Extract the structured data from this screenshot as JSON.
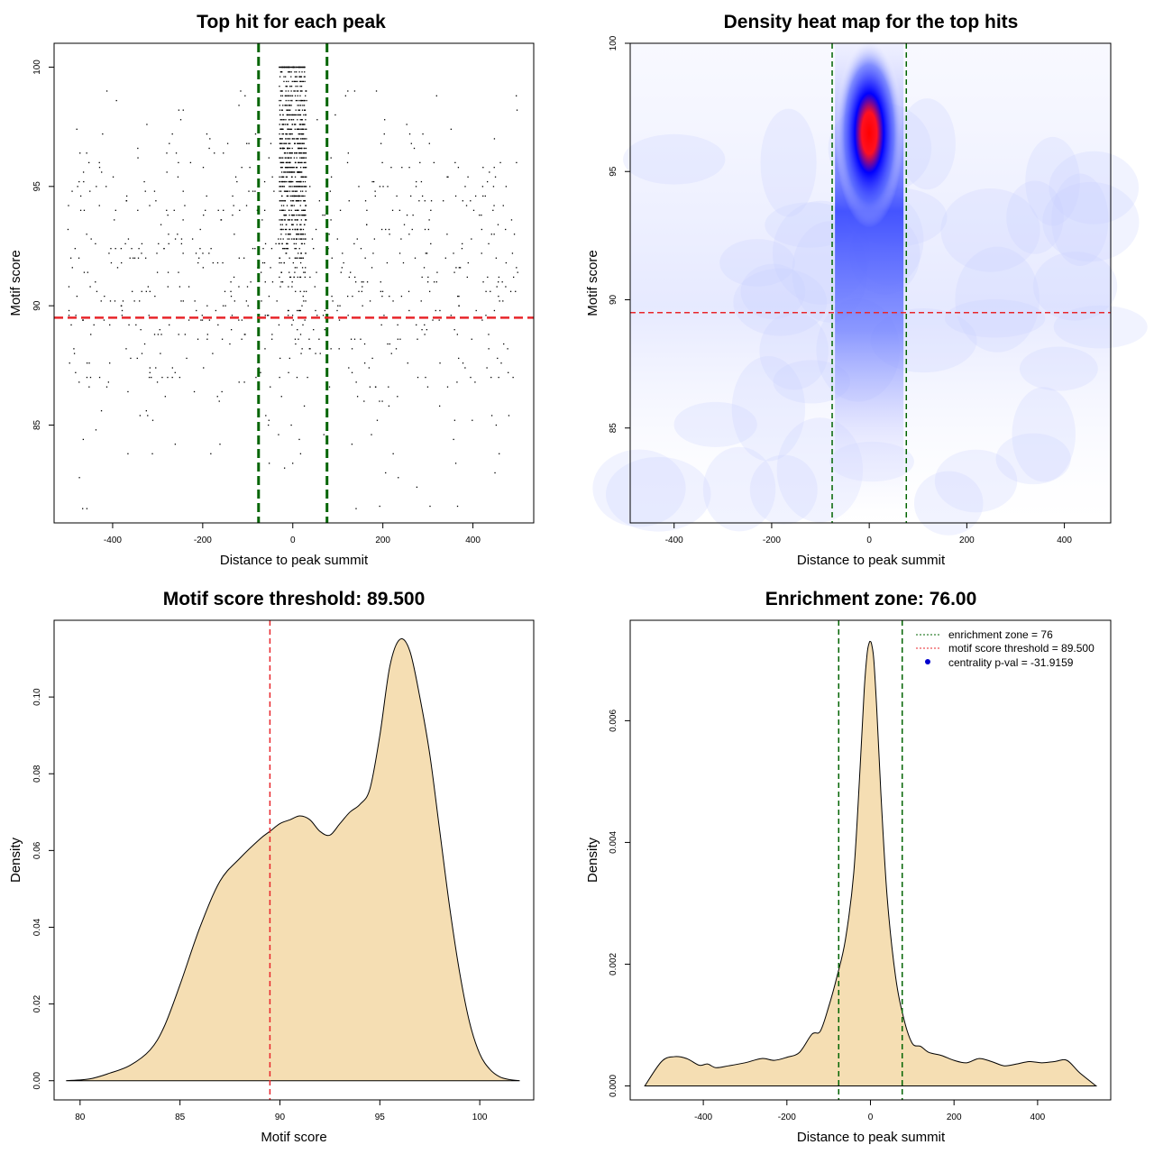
{
  "chart_data": [
    {
      "type": "scatter",
      "title": "Top hit for each peak",
      "xlabel": "Distance to peak summit",
      "ylabel": "Motif score",
      "xlim": [
        -530,
        535
      ],
      "ylim": [
        80.9,
        101
      ],
      "xticks": [
        -400,
        -200,
        0,
        200,
        400
      ],
      "yticks": [
        85,
        90,
        95,
        100
      ],
      "xtick_labels": [
        "-400",
        "-200",
        "0",
        "200",
        "400"
      ],
      "ytick_labels": [
        "85",
        "90",
        "95",
        "100"
      ],
      "points_description_counts": {
        "central_band": 900,
        "background": 700
      },
      "central_band_x_range": [
        -30,
        30
      ],
      "background_x_range": [
        -500,
        500
      ],
      "y_range": [
        81.5,
        100
      ],
      "vlines": [
        -76,
        76
      ],
      "hline": 89.5,
      "colors": {
        "points": "#000000",
        "vlines": "#006400",
        "hline": "#e8262b"
      },
      "grid": false
    },
    {
      "type": "heatmap",
      "title": "Density heat map for the top hits",
      "xlabel": "Distance to peak summit",
      "ylabel": "Motif score",
      "xlim": [
        -490,
        495
      ],
      "ylim": [
        81.3,
        100
      ],
      "xticks": [
        -400,
        -200,
        0,
        200,
        400
      ],
      "yticks": [
        85,
        90,
        95,
        100
      ],
      "xtick_labels": [
        "-400",
        "-200",
        "0",
        "200",
        "400"
      ],
      "ytick_labels": [
        "85",
        "90",
        "95",
        "100"
      ],
      "hotspot_center": [
        0,
        96.5
      ],
      "vlines": [
        -76,
        76
      ],
      "hline": 89.5,
      "colors": {
        "low": "#ffffff",
        "mid": "#0000ff",
        "high": "#ff0000",
        "vlines": "#006400",
        "hline": "#e8262b"
      }
    },
    {
      "type": "area",
      "title": "Motif score threshold: 89.500",
      "xlabel": "Motif score",
      "ylabel": "Density",
      "xlim": [
        78.7,
        102.7
      ],
      "ylim": [
        -0.005,
        0.12
      ],
      "xticks": [
        80,
        85,
        90,
        95,
        100
      ],
      "yticks": [
        0,
        0.02,
        0.04,
        0.06,
        0.08,
        0.1
      ],
      "xtick_labels": [
        "80",
        "85",
        "90",
        "95",
        "100"
      ],
      "ytick_labels": [
        "0.00",
        "0.02",
        "0.04",
        "0.06",
        "0.08",
        "0.10"
      ],
      "x": [
        79.3,
        80.5,
        81.5,
        82.5,
        83.5,
        84.2,
        85,
        86,
        87,
        88,
        89,
        89.5,
        90,
        90.5,
        91,
        91.5,
        92,
        92.5,
        93,
        93.5,
        94,
        94.5,
        95,
        95.5,
        96,
        96.5,
        97,
        97.5,
        98,
        98.5,
        99,
        99.5,
        100,
        100.5,
        101,
        101.5,
        102
      ],
      "y": [
        0,
        0.0005,
        0.002,
        0.004,
        0.008,
        0.014,
        0.025,
        0.04,
        0.052,
        0.058,
        0.063,
        0.065,
        0.067,
        0.068,
        0.069,
        0.068,
        0.065,
        0.064,
        0.067,
        0.07,
        0.072,
        0.076,
        0.09,
        0.108,
        0.115,
        0.112,
        0.1,
        0.085,
        0.065,
        0.045,
        0.028,
        0.015,
        0.007,
        0.003,
        0.001,
        0.0003,
        0
      ],
      "vline": 89.5,
      "colors": {
        "fill": "#f5deb3",
        "line": "#000000",
        "vline": "#e8262b"
      }
    },
    {
      "type": "area",
      "title": "Enrichment zone: 76.00",
      "xlabel": "Distance to peak summit",
      "ylabel": "Density",
      "xlim": [
        -575,
        575
      ],
      "ylim": [
        -0.00023,
        0.00765
      ],
      "xticks": [
        -400,
        -200,
        0,
        200,
        400
      ],
      "yticks": [
        0,
        0.002,
        0.004,
        0.006
      ],
      "xtick_labels": [
        "-400",
        "-200",
        "0",
        "200",
        "400"
      ],
      "ytick_labels": [
        "0.000",
        "0.002",
        "0.004",
        "0.006"
      ],
      "x": [
        -540,
        -500,
        -470,
        -440,
        -410,
        -390,
        -370,
        -340,
        -300,
        -260,
        -230,
        -200,
        -170,
        -140,
        -120,
        -100,
        -80,
        -60,
        -40,
        -25,
        -15,
        -8,
        -3,
        0,
        3,
        8,
        15,
        25,
        40,
        60,
        80,
        100,
        120,
        140,
        170,
        200,
        230,
        260,
        290,
        320,
        350,
        380,
        410,
        440,
        470,
        500,
        540
      ],
      "y": [
        0,
        0.0004,
        0.00048,
        0.00045,
        0.00034,
        0.00036,
        0.0003,
        0.00033,
        0.00038,
        0.00045,
        0.00042,
        0.00047,
        0.00055,
        0.00085,
        0.0009,
        0.0013,
        0.0018,
        0.0024,
        0.0035,
        0.0052,
        0.0065,
        0.0071,
        0.00728,
        0.0073,
        0.00725,
        0.007,
        0.0062,
        0.0048,
        0.0031,
        0.0018,
        0.0011,
        0.0007,
        0.00065,
        0.00055,
        0.0005,
        0.00042,
        0.00038,
        0.00045,
        0.0004,
        0.00033,
        0.00036,
        0.0004,
        0.00038,
        0.0004,
        0.00042,
        0.00022,
        0
      ],
      "vlines": [
        -76,
        76
      ],
      "colors": {
        "fill": "#f5deb3",
        "line": "#000000",
        "vlines": "#006400",
        "threshold": "#e8262b",
        "pval": "#0000cd"
      },
      "legend": {
        "position": "top-right",
        "entries": [
          "enrichment zone = 76",
          "motif score threshold = 89.500",
          "centrality p-val = -31.9159"
        ]
      }
    }
  ]
}
